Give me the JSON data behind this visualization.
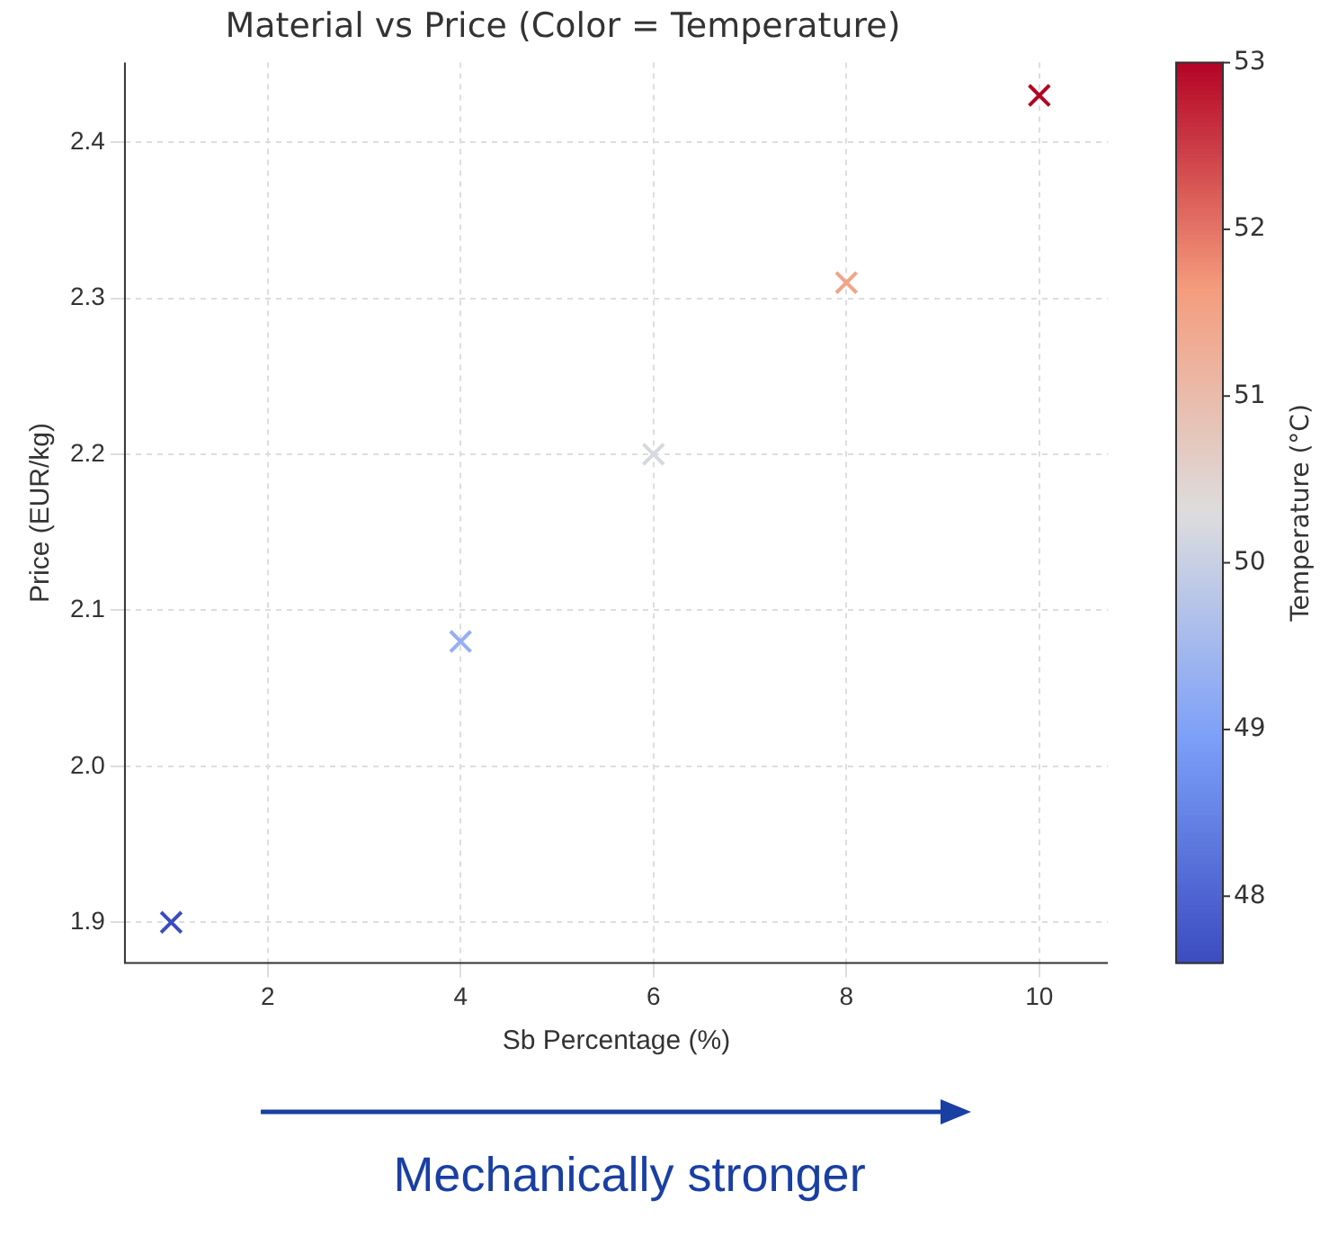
{
  "chart_data": {
    "type": "scatter",
    "title": "Material vs Price (Color = Temperature)",
    "xlabel": "Sb Percentage (%)",
    "ylabel": "Price (EUR/kg)",
    "clabel": "Temperature (°C)",
    "x": [
      1,
      4,
      6,
      8,
      10
    ],
    "values": [
      1.9,
      2.08,
      2.2,
      2.31,
      2.43
    ],
    "cvalues": [
      47.6,
      49.3,
      50.2,
      51.5,
      53
    ],
    "xlim": [
      0.52,
      10.71
    ],
    "xticks": [
      2,
      4,
      6,
      8,
      10
    ],
    "ylim": [
      1.874,
      2.451
    ],
    "yticks": [
      1.9,
      {
        "value": 2,
        "label": "2.0"
      },
      2.1,
      2.2,
      2.3,
      2.4
    ],
    "clim": [
      47.6,
      53
    ],
    "cticks": [
      48,
      49,
      50,
      51,
      52,
      53
    ],
    "grid": true,
    "marker": "cross",
    "annotations": [
      "Mechanically stronger"
    ]
  }
}
